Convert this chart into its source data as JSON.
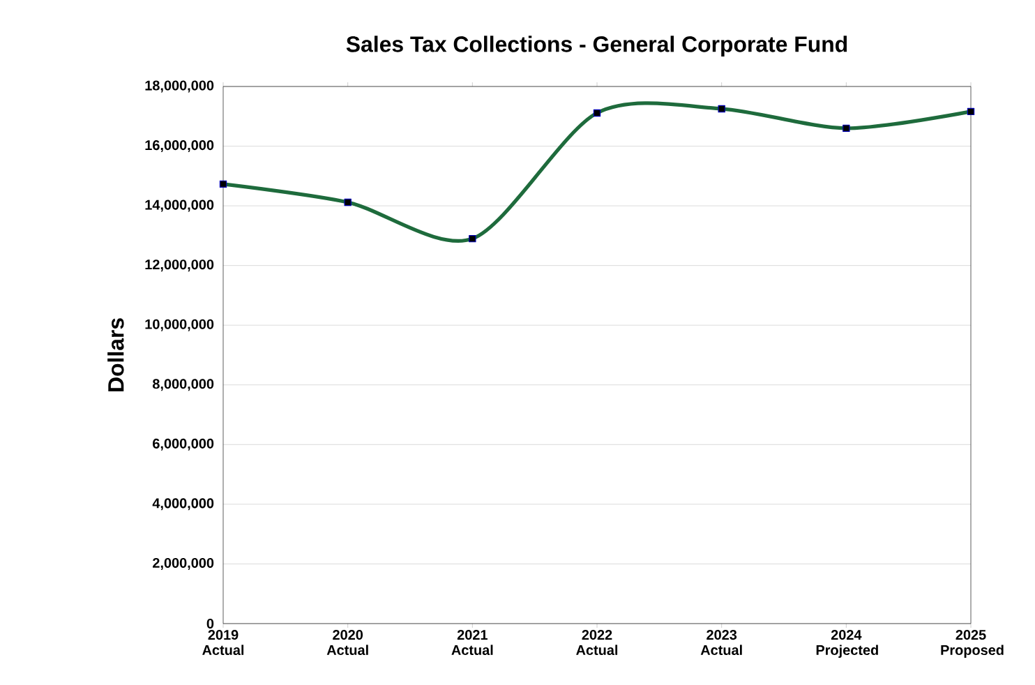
{
  "chart_data": {
    "type": "line",
    "title": "Sales Tax Collections - General Corporate Fund",
    "ylabel": "Dollars",
    "categories": [
      "2019 Actual",
      "2020 Actual",
      "2021 Actual",
      "2022 Actual",
      "2023 Actual",
      "2024 Projected",
      "2025 Proposed"
    ],
    "series": [
      {
        "color": "#1e6b3c",
        "values": [
          14730000,
          14120000,
          12900000,
          17110000,
          17250000,
          16600000,
          17160000
        ]
      }
    ],
    "ylim": [
      0,
      18000000
    ],
    "yticks": [
      {
        "value": 0,
        "label": "0"
      },
      {
        "value": 2000000,
        "label": "2,000,000"
      },
      {
        "value": 4000000,
        "label": "4,000,000"
      },
      {
        "value": 6000000,
        "label": "6,000,000"
      },
      {
        "value": 8000000,
        "label": "8,000,000"
      },
      {
        "value": 10000000,
        "label": "10,000,000"
      },
      {
        "value": 12000000,
        "label": "12,000,000"
      },
      {
        "value": 14000000,
        "label": "14,000,000"
      },
      {
        "value": 16000000,
        "label": "16,000,000"
      },
      {
        "value": 18000000,
        "label": "18,000,000"
      }
    ],
    "grid": "y",
    "marker": "square",
    "line_style": "solid"
  }
}
